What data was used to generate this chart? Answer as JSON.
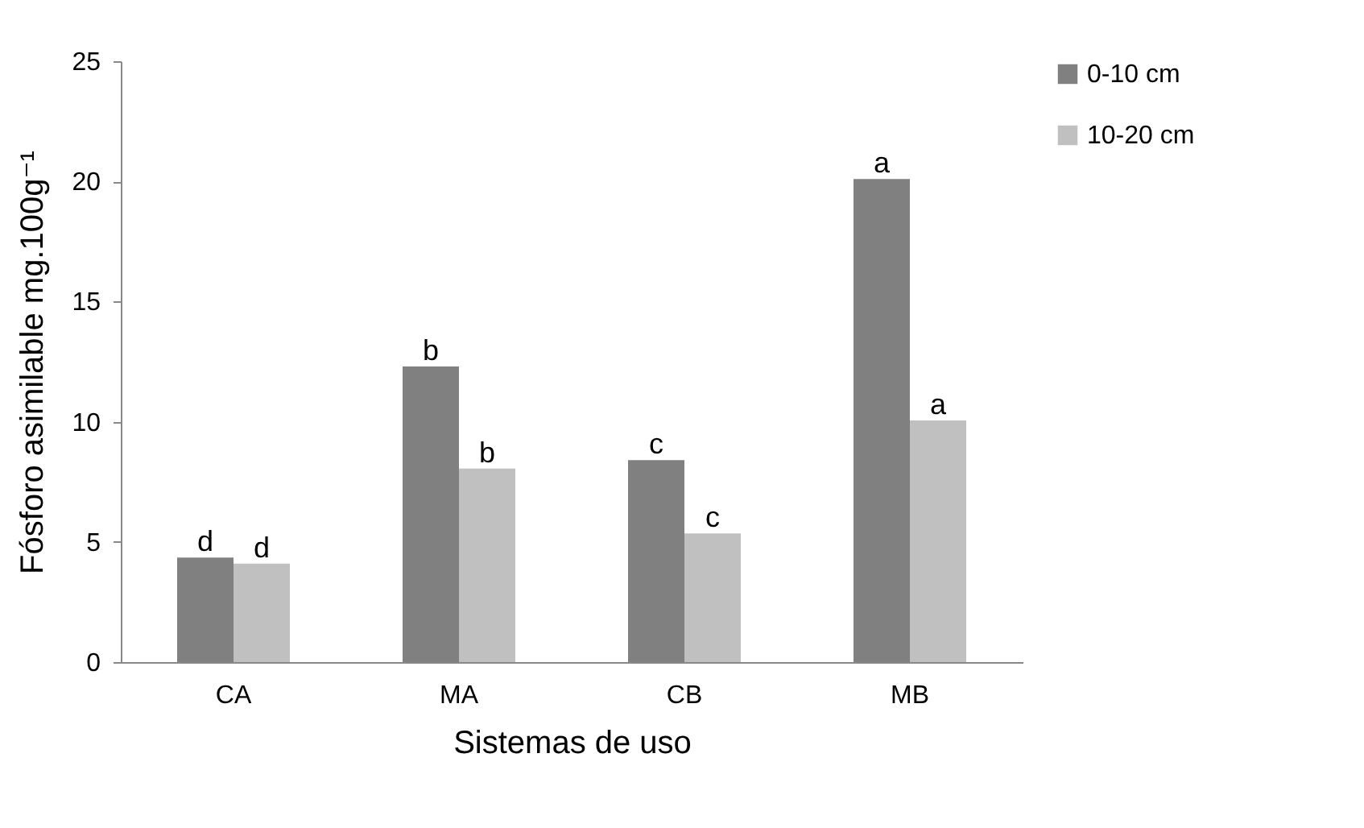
{
  "chart_data": {
    "type": "bar",
    "xlabel": "Sistemas de uso",
    "ylabel": "Fósforo asimilable mg.100g⁻¹",
    "categories": [
      "CA",
      "MA",
      "CB",
      "MB"
    ],
    "series": [
      {
        "name": "0-10 cm",
        "color": "#808080",
        "values": [
          4.35,
          12.3,
          8.4,
          20.1
        ],
        "value_labels": [
          "d",
          "b",
          "c",
          "a"
        ]
      },
      {
        "name": "10-20 cm",
        "color": "#c0c0c0",
        "values": [
          4.1,
          8.05,
          5.35,
          10.05
        ],
        "value_labels": [
          "d",
          "b",
          "c",
          "a"
        ]
      }
    ],
    "ylim": [
      0,
      25
    ],
    "yticks": [
      0,
      5,
      10,
      15,
      20,
      25
    ],
    "grid": false,
    "legend": "right"
  }
}
